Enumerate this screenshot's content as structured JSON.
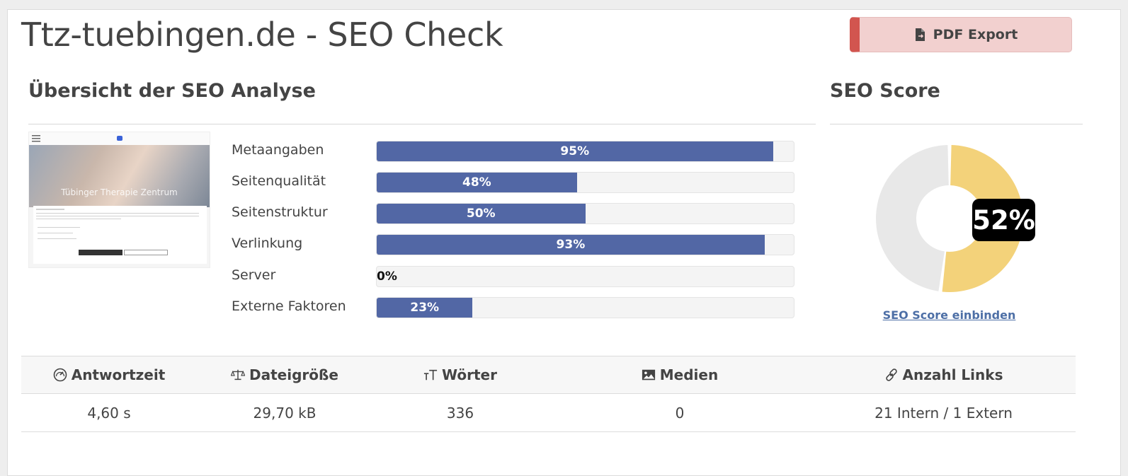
{
  "header": {
    "title": "Ttz-tuebingen.de - SEO Check",
    "pdf_export_label": "PDF Export"
  },
  "overview": {
    "title": "Übersicht der SEO Analyse",
    "screenshot_text": "Tübinger Therapie Zentrum",
    "metrics": [
      {
        "label": "Metaangaben",
        "percent": 95,
        "display": "95%"
      },
      {
        "label": "Seitenqualität",
        "percent": 48,
        "display": "48%"
      },
      {
        "label": "Seitenstruktur",
        "percent": 50,
        "display": "50%"
      },
      {
        "label": "Verlinkung",
        "percent": 93,
        "display": "93%"
      },
      {
        "label": "Server",
        "percent": 0,
        "display": "0%"
      },
      {
        "label": "Externe Faktoren",
        "percent": 23,
        "display": "23%"
      }
    ]
  },
  "score": {
    "title": "SEO Score",
    "value": 52,
    "display": "52%",
    "link_label": "SEO Score einbinden",
    "color_fill": "#f3d27a",
    "color_rest": "#e8e8e8"
  },
  "stats": {
    "columns": [
      {
        "label": "Antwortzeit",
        "icon": "gauge-icon",
        "value": "4,60 s"
      },
      {
        "label": "Dateigröße",
        "icon": "scale-icon",
        "value": "29,70 kB"
      },
      {
        "label": "Wörter",
        "icon": "text-size-icon",
        "value": "336"
      },
      {
        "label": "Medien",
        "icon": "image-icon",
        "value": "0"
      },
      {
        "label": "Anzahl Links",
        "icon": "link-icon",
        "value": "21 Intern / 1 Extern"
      }
    ]
  },
  "colors": {
    "bar": "#5267a5",
    "pdf_accent": "#d2554f",
    "link": "#4d6fa6"
  }
}
